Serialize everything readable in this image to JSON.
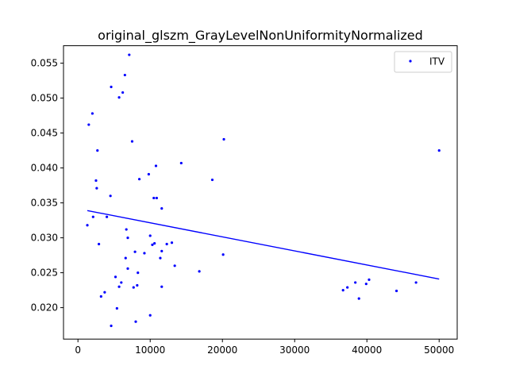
{
  "chart_data": {
    "type": "scatter",
    "title": "original_glszm_GrayLevelNonUniformityNormalized",
    "xlabel": "",
    "ylabel": "",
    "xlim": [
      -2000,
      52500
    ],
    "ylim": [
      0.0155,
      0.0575
    ],
    "xticks": [
      0,
      10000,
      20000,
      30000,
      40000,
      50000
    ],
    "xtick_labels": [
      "0",
      "10000",
      "20000",
      "30000",
      "40000",
      "50000"
    ],
    "yticks": [
      0.02,
      0.025,
      0.03,
      0.035,
      0.04,
      0.045,
      0.05,
      0.055
    ],
    "ytick_labels": [
      "0.020",
      "0.025",
      "0.030",
      "0.035",
      "0.040",
      "0.045",
      "0.050",
      "0.055"
    ],
    "grid": false,
    "legend_position": "top-right",
    "series": [
      {
        "name": "ITV",
        "color": "#0000ff",
        "points": [
          [
            1300,
            0.0318
          ],
          [
            1500,
            0.0462
          ],
          [
            2000,
            0.0478
          ],
          [
            2100,
            0.033
          ],
          [
            2500,
            0.0382
          ],
          [
            2600,
            0.0371
          ],
          [
            2700,
            0.0425
          ],
          [
            2900,
            0.0291
          ],
          [
            3200,
            0.0216
          ],
          [
            3700,
            0.0222
          ],
          [
            4000,
            0.033
          ],
          [
            4500,
            0.036
          ],
          [
            4600,
            0.0516
          ],
          [
            4600,
            0.0174
          ],
          [
            5200,
            0.0244
          ],
          [
            5400,
            0.0199
          ],
          [
            5700,
            0.0501
          ],
          [
            5700,
            0.023
          ],
          [
            6000,
            0.0236
          ],
          [
            6200,
            0.0508
          ],
          [
            6500,
            0.0533
          ],
          [
            6600,
            0.0271
          ],
          [
            6700,
            0.0312
          ],
          [
            6900,
            0.03
          ],
          [
            6900,
            0.0256
          ],
          [
            7100,
            0.0562
          ],
          [
            7500,
            0.0438
          ],
          [
            7700,
            0.0229
          ],
          [
            7900,
            0.028
          ],
          [
            8000,
            0.018
          ],
          [
            8200,
            0.0232
          ],
          [
            8300,
            0.025
          ],
          [
            8500,
            0.0384
          ],
          [
            9200,
            0.0278
          ],
          [
            9800,
            0.0391
          ],
          [
            10000,
            0.0303
          ],
          [
            10000,
            0.0189
          ],
          [
            10300,
            0.029
          ],
          [
            10500,
            0.0357
          ],
          [
            10600,
            0.0292
          ],
          [
            10800,
            0.0403
          ],
          [
            10900,
            0.0357
          ],
          [
            11400,
            0.0271
          ],
          [
            11600,
            0.0342
          ],
          [
            11600,
            0.0281
          ],
          [
            11600,
            0.023
          ],
          [
            12300,
            0.0291
          ],
          [
            13000,
            0.0293
          ],
          [
            13400,
            0.026
          ],
          [
            14300,
            0.0407
          ],
          [
            16800,
            0.0252
          ],
          [
            18600,
            0.0383
          ],
          [
            20100,
            0.0276
          ],
          [
            20200,
            0.0441
          ],
          [
            36700,
            0.0225
          ],
          [
            37300,
            0.0229
          ],
          [
            38400,
            0.0236
          ],
          [
            38900,
            0.0213
          ],
          [
            39900,
            0.0234
          ],
          [
            40300,
            0.024
          ],
          [
            44100,
            0.0224
          ],
          [
            46800,
            0.0236
          ],
          [
            50000,
            0.0425
          ]
        ],
        "trendline": {
          "x": [
            1300,
            50000
          ],
          "y": [
            0.0339,
            0.0241
          ]
        }
      }
    ]
  }
}
